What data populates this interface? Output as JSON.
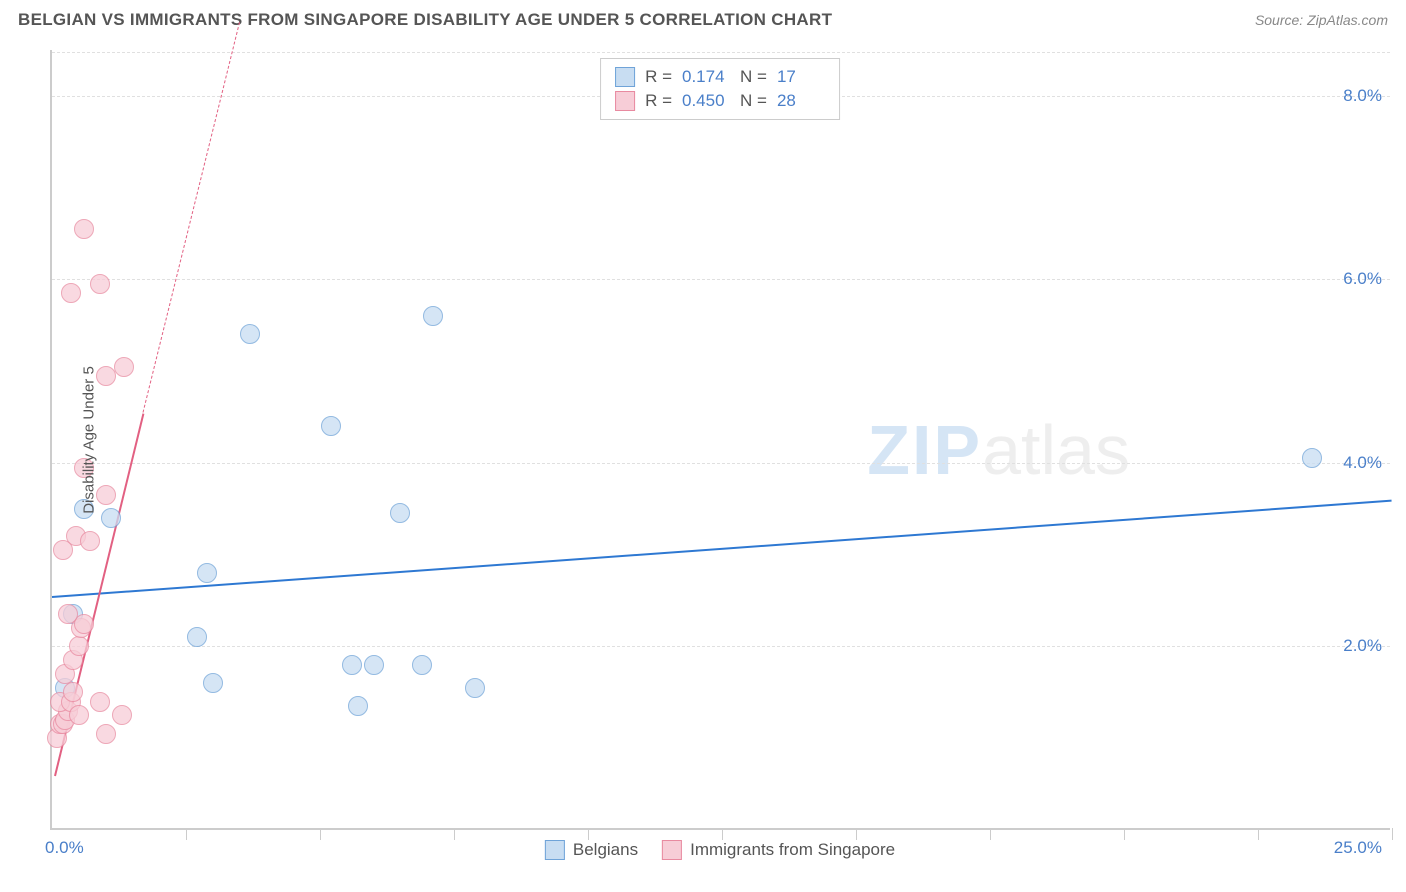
{
  "header": {
    "title": "BELGIAN VS IMMIGRANTS FROM SINGAPORE DISABILITY AGE UNDER 5 CORRELATION CHART",
    "source": "Source: ZipAtlas.com"
  },
  "chart": {
    "type": "scatter",
    "ylabel": "Disability Age Under 5",
    "xlim": [
      0,
      25
    ],
    "ylim": [
      0,
      8.5
    ],
    "x_ticks": [
      2.5,
      5,
      7.5,
      10,
      12.5,
      15,
      17.5,
      20,
      22.5,
      25
    ],
    "y_grid": [
      2,
      4,
      6,
      8
    ],
    "y_tick_labels": [
      "2.0%",
      "4.0%",
      "6.0%",
      "8.0%"
    ],
    "x_min_label": "0.0%",
    "x_max_label": "25.0%",
    "background_color": "#ffffff",
    "grid_color": "#e0e0e0",
    "axis_color": "#cccccc",
    "label_fontsize": 15,
    "tick_color": "#4a7fc9",
    "watermark": {
      "part1": "ZIP",
      "part2": "atlas"
    },
    "series": [
      {
        "name": "Belgians",
        "fill": "#c8ddf2",
        "stroke": "#6fa3d8",
        "trend_color": "#2e78d2",
        "r_value": "0.174",
        "n_value": "17",
        "trend": {
          "x1": 0,
          "y1": 2.55,
          "x2": 25,
          "y2": 3.6
        },
        "points": [
          [
            0.4,
            2.35
          ],
          [
            0.25,
            1.55
          ],
          [
            0.6,
            3.5
          ],
          [
            1.1,
            3.4
          ],
          [
            2.7,
            2.1
          ],
          [
            3.0,
            1.6
          ],
          [
            2.9,
            2.8
          ],
          [
            3.7,
            5.4
          ],
          [
            5.2,
            4.4
          ],
          [
            5.6,
            1.8
          ],
          [
            5.7,
            1.35
          ],
          [
            6.0,
            1.8
          ],
          [
            6.5,
            3.45
          ],
          [
            6.9,
            1.8
          ],
          [
            7.1,
            5.6
          ],
          [
            7.9,
            1.55
          ],
          [
            23.5,
            4.05
          ]
        ]
      },
      {
        "name": "Immigrants from Singapore",
        "fill": "#f7cdd7",
        "stroke": "#e88aa0",
        "trend_color": "#e26082",
        "r_value": "0.450",
        "n_value": "28",
        "trend_solid": {
          "x1": 0.05,
          "y1": 0.6,
          "x2": 1.7,
          "y2": 4.55
        },
        "trend_dashed": {
          "x1": 1.7,
          "y1": 4.55,
          "x2": 3.5,
          "y2": 8.8
        },
        "points": [
          [
            0.1,
            1.0
          ],
          [
            0.15,
            1.15
          ],
          [
            0.2,
            1.15
          ],
          [
            0.25,
            1.2
          ],
          [
            0.3,
            1.3
          ],
          [
            0.15,
            1.4
          ],
          [
            0.35,
            1.4
          ],
          [
            0.4,
            1.5
          ],
          [
            0.5,
            1.25
          ],
          [
            0.25,
            1.7
          ],
          [
            0.4,
            1.85
          ],
          [
            0.5,
            2.0
          ],
          [
            0.55,
            2.2
          ],
          [
            0.6,
            2.25
          ],
          [
            0.3,
            2.35
          ],
          [
            0.45,
            3.2
          ],
          [
            0.7,
            3.15
          ],
          [
            1.0,
            3.65
          ],
          [
            0.6,
            3.95
          ],
          [
            1.0,
            4.95
          ],
          [
            1.35,
            5.05
          ],
          [
            0.35,
            5.85
          ],
          [
            0.9,
            5.95
          ],
          [
            0.6,
            6.55
          ],
          [
            1.0,
            1.05
          ],
          [
            1.3,
            1.25
          ],
          [
            0.9,
            1.4
          ],
          [
            0.2,
            3.05
          ]
        ]
      }
    ],
    "bottom_legend": [
      {
        "label": "Belgians",
        "fill": "#c8ddf2",
        "stroke": "#6fa3d8"
      },
      {
        "label": "Immigrants from Singapore",
        "fill": "#f7cdd7",
        "stroke": "#e88aa0"
      }
    ]
  }
}
